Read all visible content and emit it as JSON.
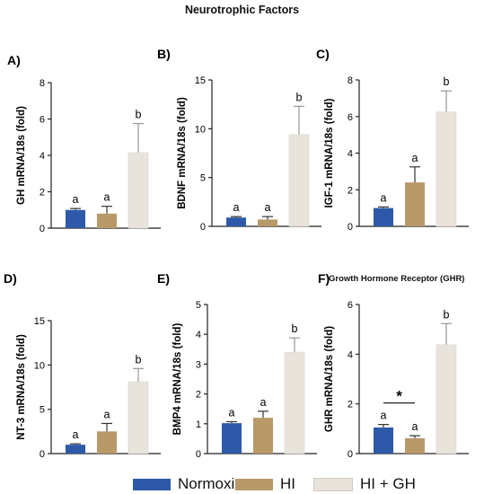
{
  "figure": {
    "title": "Neurotrophic Factors",
    "section_title": "Growth Hormone Receptor (GHR)"
  },
  "legend": [
    {
      "label": "Normoxia",
      "color": "#2e59a8"
    },
    {
      "label": "HI",
      "color": "#b89968"
    },
    {
      "label": "HI + GH",
      "color": "#e8e4dc"
    }
  ],
  "chart_data": [
    {
      "type": "bar",
      "panel_label": "A)",
      "ylabel": "GH mRNA/18s (fold)",
      "ylim": [
        0,
        8
      ],
      "yticks": [
        "0",
        "2",
        "4",
        "6",
        "8"
      ],
      "categories": [
        "Normoxia",
        "HI",
        "HI + GH"
      ],
      "values": [
        1.0,
        0.8,
        4.15
      ],
      "errors": [
        0.08,
        0.4,
        1.6
      ],
      "letters": [
        "a",
        "a",
        "b"
      ]
    },
    {
      "type": "bar",
      "panel_label": "B)",
      "ylabel": "BDNF mRNA/18s (fold)",
      "ylim": [
        0,
        15
      ],
      "yticks": [
        "0",
        "5",
        "10",
        "15"
      ],
      "categories": [
        "Normoxia",
        "HI",
        "HI + GH"
      ],
      "values": [
        0.9,
        0.7,
        9.4
      ],
      "errors": [
        0.1,
        0.3,
        2.9
      ],
      "letters": [
        "a",
        "a",
        "b"
      ]
    },
    {
      "type": "bar",
      "panel_label": "C)",
      "ylabel": "IGF-1 mRNA/18s (fold)",
      "ylim": [
        0,
        8
      ],
      "yticks": [
        "0",
        "2",
        "4",
        "6",
        "8"
      ],
      "categories": [
        "Normoxia",
        "HI",
        "HI + GH"
      ],
      "values": [
        1.0,
        2.4,
        6.25
      ],
      "errors": [
        0.06,
        0.85,
        1.15
      ],
      "letters": [
        "a",
        "a",
        "b"
      ]
    },
    {
      "type": "bar",
      "panel_label": "D)",
      "ylabel": "NT-3 mRNA/18s (fold)",
      "ylim": [
        0,
        15
      ],
      "yticks": [
        "0",
        "5",
        "10",
        "15"
      ],
      "categories": [
        "Normoxia",
        "HI",
        "HI + GH"
      ],
      "values": [
        1.0,
        2.5,
        8.1
      ],
      "errors": [
        0.1,
        0.9,
        1.5
      ],
      "letters": [
        "a",
        "a",
        "b"
      ]
    },
    {
      "type": "bar",
      "panel_label": "E)",
      "ylabel": "BMP4 mRNA/18s (fold)",
      "ylim": [
        0,
        5
      ],
      "yticks": [
        "0",
        "1",
        "2",
        "3",
        "4",
        "5"
      ],
      "categories": [
        "Normoxia",
        "HI",
        "HI + GH"
      ],
      "values": [
        1.02,
        1.2,
        3.4
      ],
      "errors": [
        0.05,
        0.22,
        0.48
      ],
      "letters": [
        "a",
        "a",
        "b"
      ]
    },
    {
      "type": "bar",
      "panel_label": "F)",
      "ylabel": "GHR mRNA/18s (fold)",
      "ylim": [
        0,
        6
      ],
      "yticks": [
        "0",
        "2",
        "4",
        "6"
      ],
      "categories": [
        "Normoxia",
        "HI",
        "HI + GH"
      ],
      "values": [
        1.05,
        0.62,
        4.38
      ],
      "errors": [
        0.12,
        0.1,
        0.85
      ],
      "letters": [
        "a",
        "a",
        "b"
      ],
      "significance": {
        "label": "*",
        "between": [
          0,
          1
        ]
      }
    }
  ]
}
